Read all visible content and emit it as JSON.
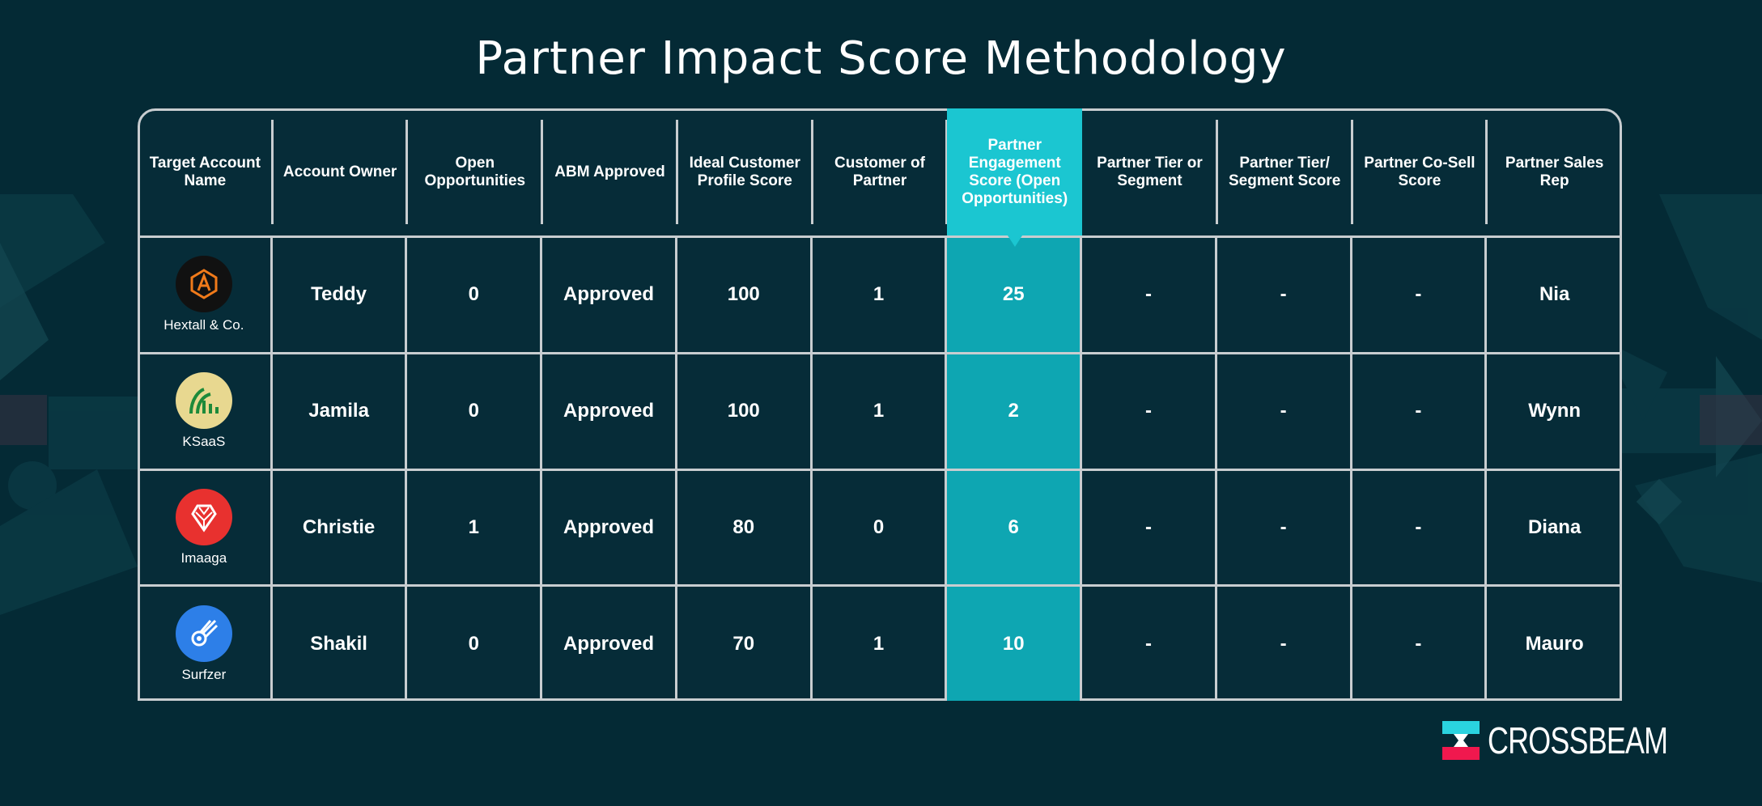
{
  "title": "Partner Impact Score Methodology",
  "columns": [
    "Target Account Name",
    "Account Owner",
    "Open Opportunities",
    "ABM Approved",
    "Ideal Customer Profile Score",
    "Customer of Partner",
    "Partner Engagement Score (Open Opportunities)",
    "Partner Tier or Segment",
    "Partner Tier/ Segment Score",
    "Partner Co-Sell Score",
    "Partner Sales Rep"
  ],
  "rows": [
    {
      "account": "Hextall & Co.",
      "logo": "hextall-logo-icon",
      "owner": "Teddy",
      "open_opps": "0",
      "abm": "Approved",
      "icp": "100",
      "customer_of_partner": "1",
      "engagement": "25",
      "tier": "-",
      "tier_score": "-",
      "cosell": "-",
      "rep": "Nia"
    },
    {
      "account": "KSaaS",
      "logo": "ksaas-logo-icon",
      "owner": "Jamila",
      "open_opps": "0",
      "abm": "Approved",
      "icp": "100",
      "customer_of_partner": "1",
      "engagement": "2",
      "tier": "-",
      "tier_score": "-",
      "cosell": "-",
      "rep": "Wynn"
    },
    {
      "account": "Imaaga",
      "logo": "imaaga-logo-icon",
      "owner": "Christie",
      "open_opps": "1",
      "abm": "Approved",
      "icp": "80",
      "customer_of_partner": "0",
      "engagement": "6",
      "tier": "-",
      "tier_score": "-",
      "cosell": "-",
      "rep": "Diana"
    },
    {
      "account": "Surfzer",
      "logo": "surfzer-logo-icon",
      "owner": "Shakil",
      "open_opps": "0",
      "abm": "Approved",
      "icp": "70",
      "customer_of_partner": "1",
      "engagement": "10",
      "tier": "-",
      "tier_score": "-",
      "cosell": "-",
      "rep": "Mauro"
    }
  ],
  "highlight_column": 6,
  "colors": {
    "background": "#042a35",
    "highlight": "#0ea6b2",
    "highlight_header": "#1bc6d1",
    "grid": "#c8cdd0",
    "brand_cyan": "#2ad3df",
    "brand_red": "#f0184e"
  },
  "brand": {
    "name": "CROSSBEAM",
    "logo": "crossbeam-logo-icon"
  }
}
